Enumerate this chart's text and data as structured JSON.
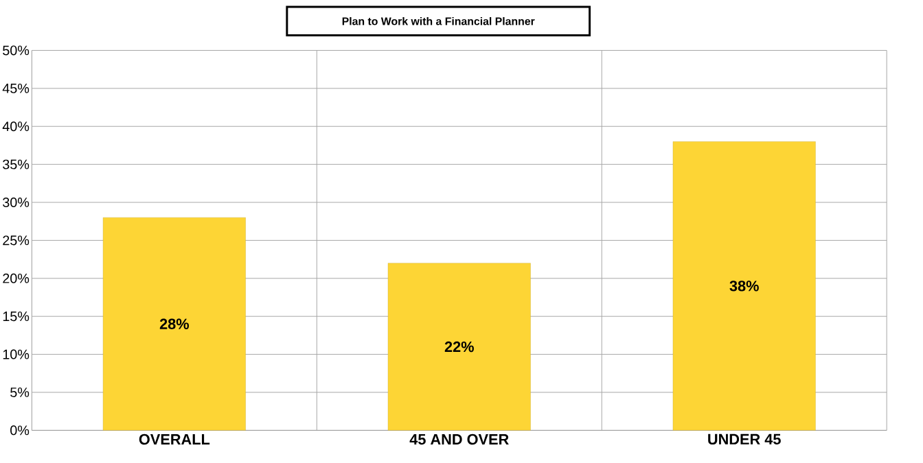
{
  "chart_data": {
    "type": "bar",
    "title": "Plan to Work with a Financial Planner",
    "categories": [
      "OVERALL",
      "45 AND OVER",
      "UNDER 45"
    ],
    "values": [
      28,
      22,
      38
    ],
    "color": "#fdd535",
    "value_labels": [
      "28%",
      "22%",
      "38%"
    ],
    "ylim": [
      0,
      50
    ],
    "yticks": [
      {
        "value": 0,
        "label": "0%"
      },
      {
        "value": 5,
        "label": "5%"
      },
      {
        "value": 10,
        "label": "10%"
      },
      {
        "value": 15,
        "label": "15%"
      },
      {
        "value": 20,
        "label": "20%"
      },
      {
        "value": 25,
        "label": "25%"
      },
      {
        "value": 30,
        "label": "30%"
      },
      {
        "value": 35,
        "label": "35%"
      },
      {
        "value": 40,
        "label": "40%"
      },
      {
        "value": 45,
        "label": "45%"
      },
      {
        "value": 50,
        "label": "50%"
      }
    ],
    "grid": true
  }
}
